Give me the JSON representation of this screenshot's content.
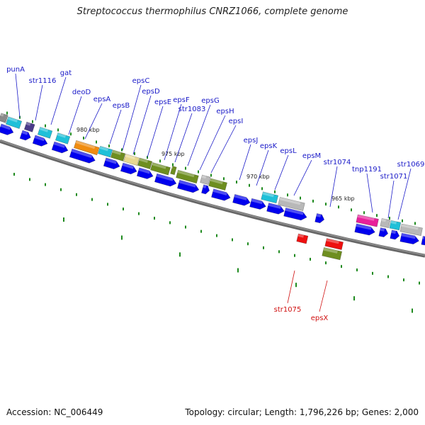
{
  "title": "Streptococcus thermophilus CNRZ1066, complete genome",
  "footer": {
    "accession": "Accession: NC_006449",
    "summary": "Topology: circular; Length: 1,796,226 bp; Genes: 2,000"
  },
  "scale_labels": [
    "980 kbp",
    "975 kbp",
    "970 kbp",
    "965 kbp"
  ],
  "gene_labels_top": [
    "punA",
    "str1116",
    "gat",
    "deoD",
    "epsA",
    "epsB",
    "epsC",
    "epsD",
    "epsE",
    "epsF",
    "str1083",
    "epsG",
    "epsH",
    "epsI",
    "epsJ",
    "epsK",
    "epsL",
    "epsM",
    "str1074",
    "tnp1191",
    "str1071",
    "str1069"
  ],
  "gene_labels_bottom": [
    "str1075",
    "epsX"
  ],
  "colors": {
    "backbone": "#8a8a8a",
    "cds": "#0000ee",
    "tick": "#1f8a1f",
    "label_blue": "#1a1ac8",
    "label_red": "#d01010",
    "feature_cyan": "#1fc0d8",
    "feature_orange": "#f08c10",
    "feature_olive": "#6e8e20",
    "feature_yellow": "#e8d890",
    "feature_grey": "#b8b8b8",
    "feature_pink": "#e8209a",
    "feature_purple": "#4a3a8a",
    "feature_red": "#ee1010"
  }
}
